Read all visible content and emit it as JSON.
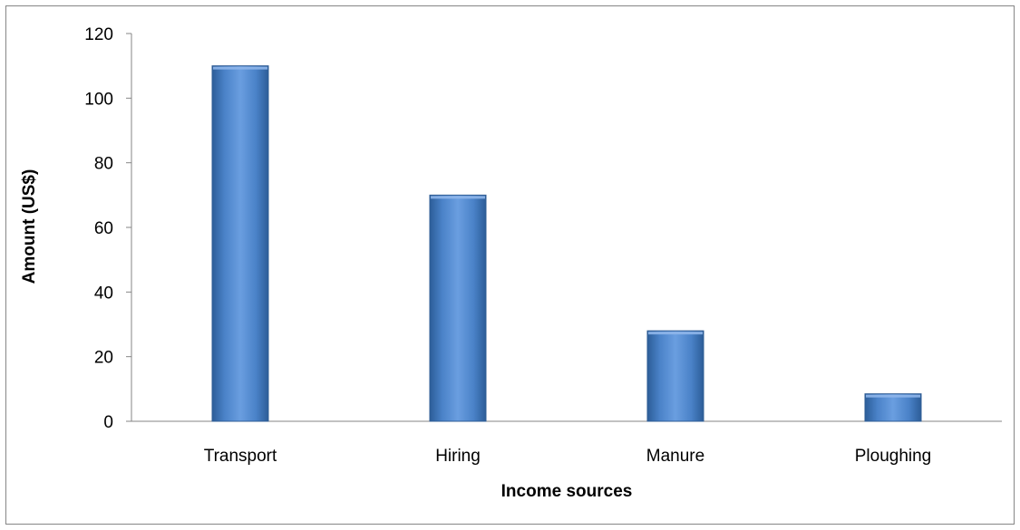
{
  "chart_data": {
    "type": "bar",
    "categories": [
      "Transport",
      "Hiring",
      "Manure",
      "Ploughing"
    ],
    "values": [
      110,
      70,
      28,
      8.5
    ],
    "title": "",
    "xlabel": "Income sources",
    "ylabel": "Amount (US$)",
    "ylim": [
      0,
      120
    ],
    "yticks": [
      0,
      20,
      40,
      60,
      80,
      100,
      120
    ],
    "grid": false,
    "legend": "none",
    "bar_color": "#4a7ebb"
  }
}
